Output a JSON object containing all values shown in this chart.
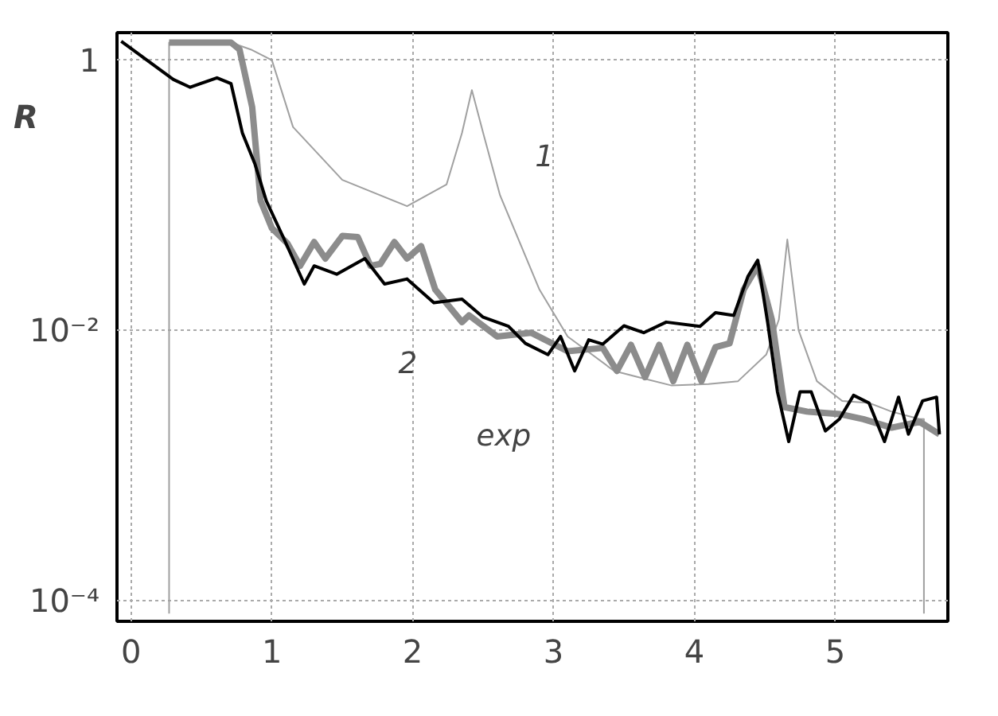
{
  "chart_data": {
    "type": "line",
    "ylabel": "R",
    "log": "y",
    "grid": true,
    "xlim": [
      -0.1,
      5.8
    ],
    "ylim": [
      7e-05,
      1.6
    ],
    "xticks": [
      0,
      1,
      2,
      3,
      4,
      5
    ],
    "yticks": [
      {
        "value": 1,
        "label": "1"
      },
      {
        "value": 0.01,
        "label": "10⁻²"
      },
      {
        "value": 0.0001,
        "label": "10⁻⁴"
      }
    ],
    "series": [
      {
        "name": "1",
        "color": "#a0a0a0",
        "x": [
          0.27,
          0.27,
          0.71,
          0.85,
          1.0,
          1.15,
          1.5,
          1.96,
          2.24,
          2.35,
          2.42,
          2.5,
          2.62,
          2.9,
          3.1,
          3.43,
          3.6,
          3.84,
          4.1,
          4.31,
          4.51,
          4.6,
          4.66,
          4.74,
          4.87,
          5.05,
          5.24,
          5.4,
          5.6,
          5.63,
          5.63
        ],
        "values": [
          8e-05,
          1.35,
          1.35,
          1.2,
          1.0,
          0.32,
          0.13,
          0.083,
          0.12,
          0.29,
          0.6,
          0.29,
          0.1,
          0.02,
          0.009,
          0.005,
          0.0045,
          0.0039,
          0.004,
          0.0042,
          0.0066,
          0.012,
          0.047,
          0.01,
          0.0042,
          0.003,
          0.0029,
          0.0025,
          0.0022,
          0.0022,
          8e-05
        ]
      },
      {
        "name": "2",
        "color": "#8c8c8c",
        "x": [
          0.27,
          0.71,
          0.77,
          0.86,
          0.92,
          1.0,
          1.11,
          1.2,
          1.3,
          1.38,
          1.5,
          1.61,
          1.7,
          1.77,
          1.87,
          1.96,
          2.06,
          2.16,
          2.35,
          2.4,
          2.6,
          2.84,
          3.1,
          3.35,
          3.45,
          3.55,
          3.65,
          3.75,
          3.85,
          3.95,
          4.05,
          4.15,
          4.25,
          4.35,
          4.45,
          4.55,
          4.64,
          4.8,
          5.03,
          5.2,
          5.4,
          5.6,
          5.74
        ],
        "values": [
          1.35,
          1.35,
          1.2,
          0.45,
          0.091,
          0.057,
          0.044,
          0.03,
          0.045,
          0.034,
          0.05,
          0.049,
          0.03,
          0.031,
          0.045,
          0.034,
          0.042,
          0.02,
          0.0115,
          0.0129,
          0.009,
          0.0096,
          0.007,
          0.0074,
          0.005,
          0.0078,
          0.0045,
          0.0078,
          0.0042,
          0.0078,
          0.0042,
          0.0075,
          0.008,
          0.02,
          0.03,
          0.012,
          0.0027,
          0.0025,
          0.0024,
          0.0022,
          0.0019,
          0.0021,
          0.0017
        ]
      },
      {
        "name": "exp",
        "color": "#000000",
        "x": [
          -0.07,
          0.3,
          0.42,
          0.61,
          0.71,
          0.79,
          0.88,
          0.96,
          1.08,
          1.23,
          1.3,
          1.46,
          1.66,
          1.8,
          1.96,
          2.15,
          2.35,
          2.5,
          2.68,
          2.8,
          2.96,
          3.05,
          3.15,
          3.25,
          3.35,
          3.5,
          3.64,
          3.8,
          4.04,
          4.15,
          4.28,
          4.38,
          4.45,
          4.52,
          4.59,
          4.67,
          4.75,
          4.83,
          4.93,
          5.03,
          5.13,
          5.24,
          5.35,
          5.45,
          5.52,
          5.62,
          5.72,
          5.74
        ],
        "values": [
          1.38,
          0.72,
          0.63,
          0.74,
          0.67,
          0.29,
          0.17,
          0.091,
          0.049,
          0.022,
          0.03,
          0.026,
          0.034,
          0.022,
          0.024,
          0.016,
          0.017,
          0.0125,
          0.0107,
          0.008,
          0.0066,
          0.009,
          0.005,
          0.0085,
          0.0079,
          0.0108,
          0.0096,
          0.0115,
          0.0107,
          0.0135,
          0.0129,
          0.025,
          0.033,
          0.0115,
          0.0035,
          0.0015,
          0.0035,
          0.0035,
          0.0018,
          0.0022,
          0.0033,
          0.0029,
          0.0015,
          0.0032,
          0.0017,
          0.003,
          0.0032,
          0.0017
        ]
      }
    ]
  }
}
